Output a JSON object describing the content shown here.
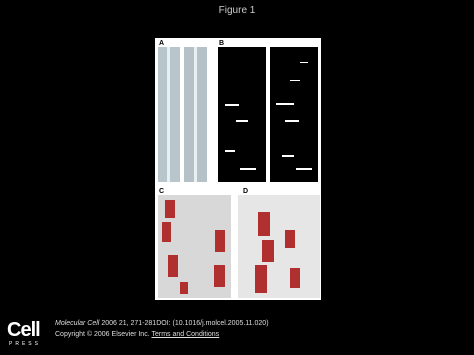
{
  "title": "Figure 1",
  "panels": [
    "A",
    "B",
    "C",
    "D"
  ],
  "logo": {
    "name": "Cell",
    "sub": "PRESS"
  },
  "citation": {
    "journal": "Molecular Cell",
    "details": "2006 21, 271-281DOI: (10.1016/j.molcel.2005.11.020)",
    "copyright": "Copyright © 2006 Elsevier Inc.",
    "link": "Terms and Conditions"
  }
}
